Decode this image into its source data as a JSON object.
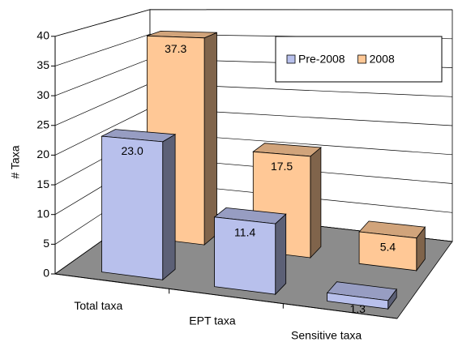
{
  "chart_data": {
    "type": "bar3d",
    "ylabel": "# Taxa",
    "categories": [
      "Total taxa",
      "EPT taxa",
      "Sensitive taxa"
    ],
    "series": [
      {
        "name": "Pre-2008",
        "color": "#b8c0ec",
        "values": [
          23.0,
          11.4,
          1.3
        ],
        "value_labels": [
          "23.0",
          "11.4",
          "1.3"
        ]
      },
      {
        "name": "2008",
        "color": "#ffc896",
        "values": [
          37.3,
          17.5,
          5.4
        ],
        "value_labels": [
          "37.3",
          "17.5",
          "5.4"
        ]
      }
    ],
    "ylim": [
      0,
      40
    ],
    "yticks": [
      0,
      5,
      10,
      15,
      20,
      25,
      30,
      35,
      40
    ],
    "grid": true,
    "legend": "top-right"
  }
}
